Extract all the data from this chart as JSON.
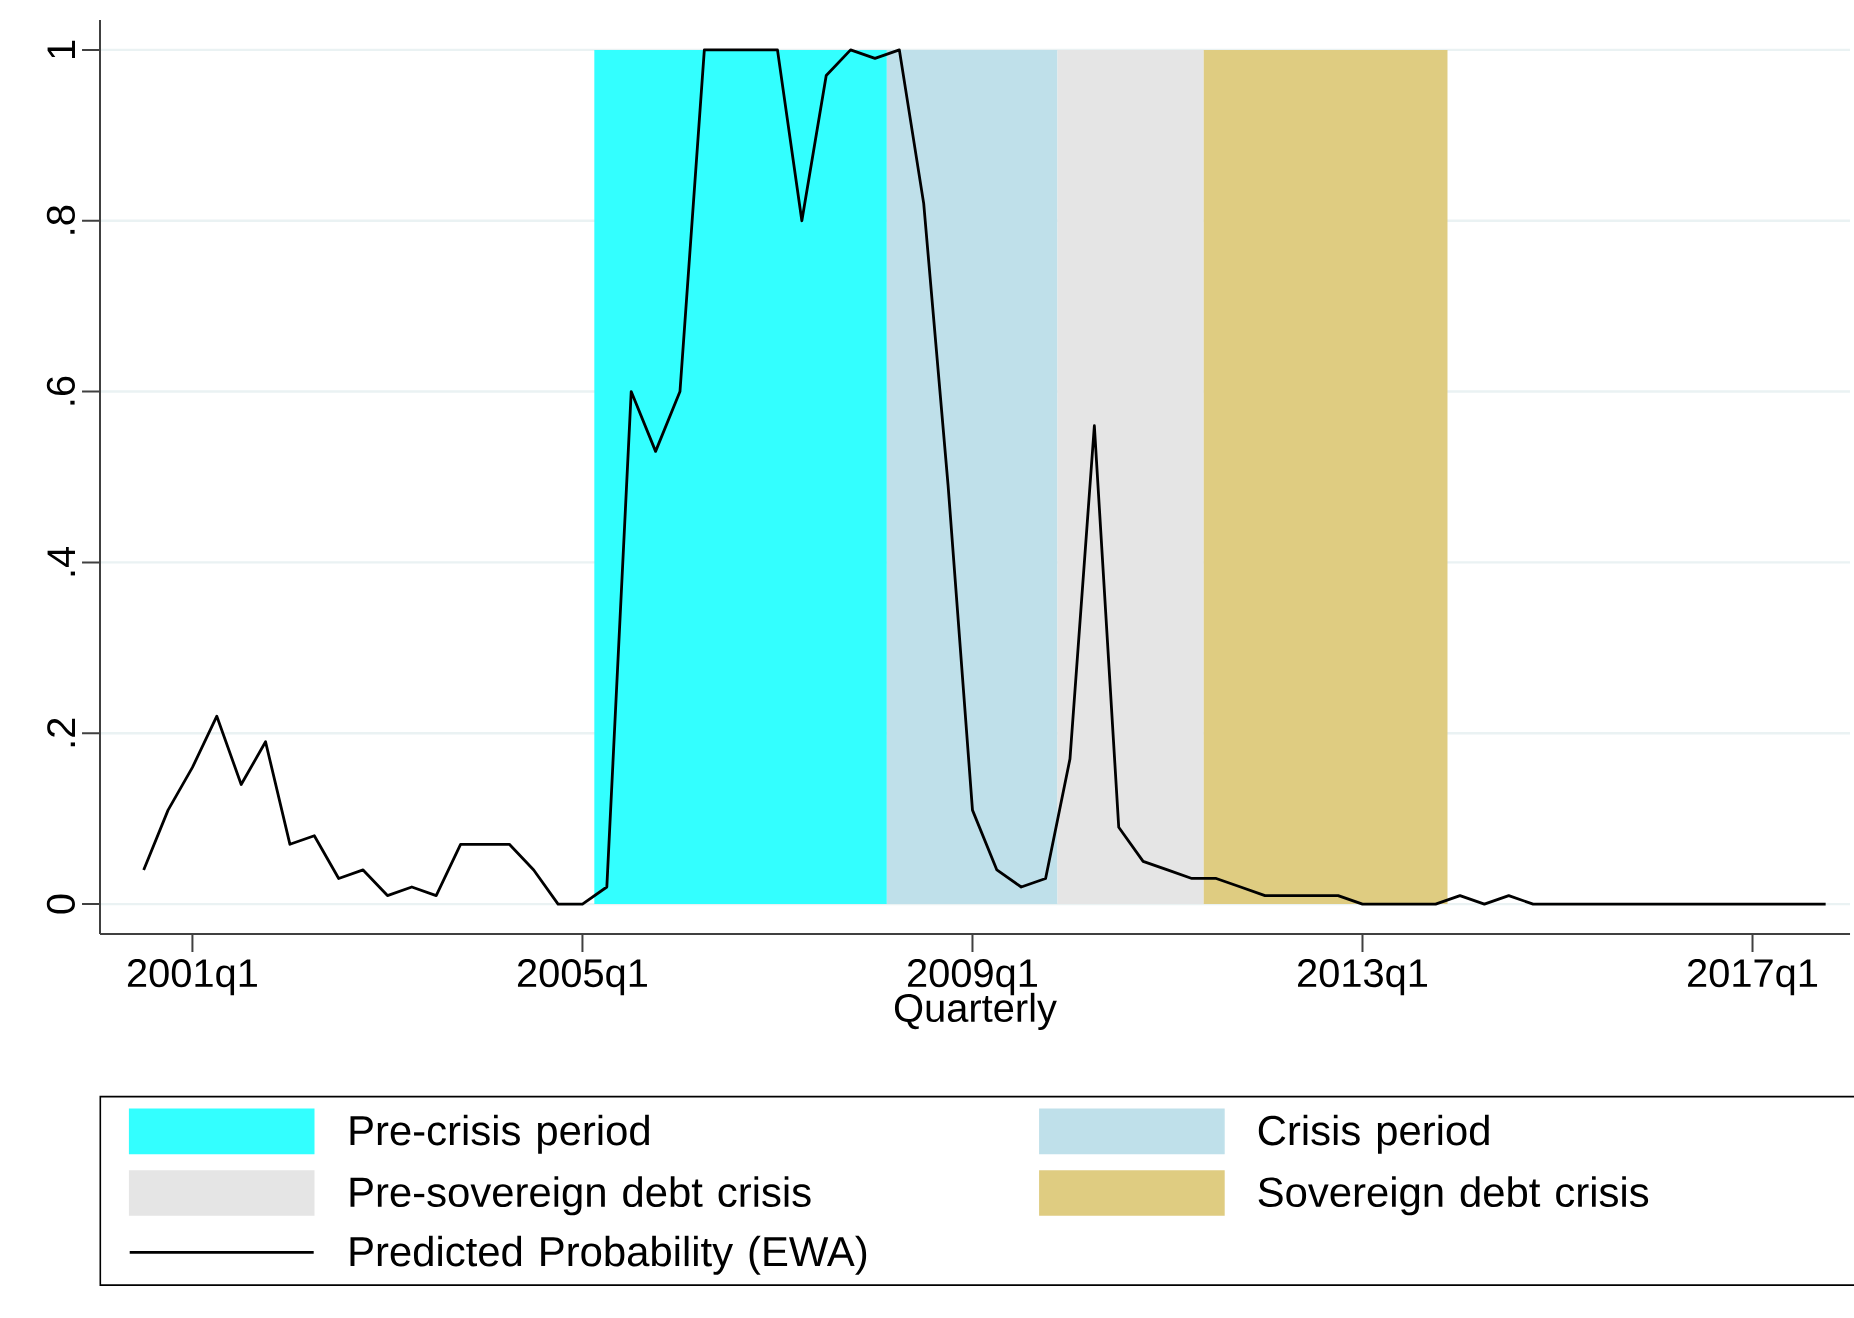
{
  "chart_data": {
    "type": "line",
    "xlabel": "Quarterly",
    "x": [
      "2000-07",
      "2000-10",
      "2001-01",
      "2001-04",
      "2001-07",
      "2001-10",
      "2002-01",
      "2002-04",
      "2002-07",
      "2002-10",
      "2003-01",
      "2003-04",
      "2003-07",
      "2003-10",
      "2004-01",
      "2004-04",
      "2004-07",
      "2004-10",
      "2005-01",
      "2005-04",
      "2005-07",
      "2005-10",
      "2006-01",
      "2006-04",
      "2006-07",
      "2006-10",
      "2007-01",
      "2007-04",
      "2007-07",
      "2007-10",
      "2008-01",
      "2008-04",
      "2008-07",
      "2008-10",
      "2009-01",
      "2009-04",
      "2009-07",
      "2009-10",
      "2010-01",
      "2010-04",
      "2010-07",
      "2010-10",
      "2011-01",
      "2011-04",
      "2011-07",
      "2011-10",
      "2012-01",
      "2012-04",
      "2012-07",
      "2012-10",
      "2013-01",
      "2013-04",
      "2013-07",
      "2013-10",
      "2014-01",
      "2014-04",
      "2014-07",
      "2014-10",
      "2015-01",
      "2015-04",
      "2015-07",
      "2015-10",
      "2016-01",
      "2016-04",
      "2016-07",
      "2016-10",
      "2017-01",
      "2017-04",
      "2017-07",
      "2017-10"
    ],
    "series": [
      {
        "name": "Predicted Probability (EWA)",
        "color": "#000000",
        "values": [
          0.04,
          0.11,
          0.16,
          0.22,
          0.14,
          0.19,
          0.07,
          0.08,
          0.03,
          0.04,
          0.01,
          0.02,
          0.01,
          0.07,
          0.07,
          0.07,
          0.04,
          0.0,
          0.0,
          0.02,
          0.6,
          0.53,
          0.6,
          1.0,
          1.0,
          1.0,
          1.0,
          0.8,
          0.97,
          1.0,
          0.99,
          1.0,
          0.82,
          0.49,
          0.11,
          0.04,
          0.02,
          0.03,
          0.17,
          0.56,
          0.09,
          0.05,
          0.04,
          0.03,
          0.03,
          0.02,
          0.01,
          0.01,
          0.01,
          0.01,
          0.0,
          0.0,
          0.0,
          0.0,
          0.01,
          0.0,
          0.01,
          0.0,
          0.0,
          0.0,
          0.0,
          0.0,
          0.0,
          0.0,
          0.0,
          0.0,
          0.0,
          0.0,
          0.0,
          0.0
        ]
      }
    ],
    "bands": [
      {
        "axis": "x",
        "from": "2005-02-15",
        "to": "2008-02-15",
        "label": "Pre-crisis period",
        "color": "#33ffff"
      },
      {
        "axis": "x",
        "from": "2008-02-15",
        "to": "2009-11-15",
        "label": "Crisis period",
        "color": "#bfe0ea"
      },
      {
        "axis": "x",
        "from": "2009-11-15",
        "to": "2011-05-15",
        "label": "Pre-sovereign debt crisis",
        "color": "#e5e5e5"
      },
      {
        "axis": "x",
        "from": "2011-05-15",
        "to": "2013-11-15",
        "label": "Sovereign debt crisis",
        "color": "#dfcc81"
      }
    ],
    "xlim": [
      "2000-01-20",
      "2018-01-01"
    ],
    "ylim": [
      -0.035,
      1.035
    ],
    "xticks": [
      {
        "value": "2001-01",
        "label": "2001q1"
      },
      {
        "value": "2005-01",
        "label": "2005q1"
      },
      {
        "value": "2009-01",
        "label": "2009q1"
      },
      {
        "value": "2013-01",
        "label": "2013q1"
      },
      {
        "value": "2017-01",
        "label": "2017q1"
      }
    ],
    "yticks": [
      0,
      {
        "value": 0.2,
        "label": ".2"
      },
      {
        "value": 0.4,
        "label": ".4"
      },
      {
        "value": 0.6,
        "label": ".6"
      },
      {
        "value": 0.8,
        "label": ".8"
      },
      1
    ],
    "grid": "y",
    "legend": "bottom",
    "line_style": "solid",
    "marker": "none"
  }
}
